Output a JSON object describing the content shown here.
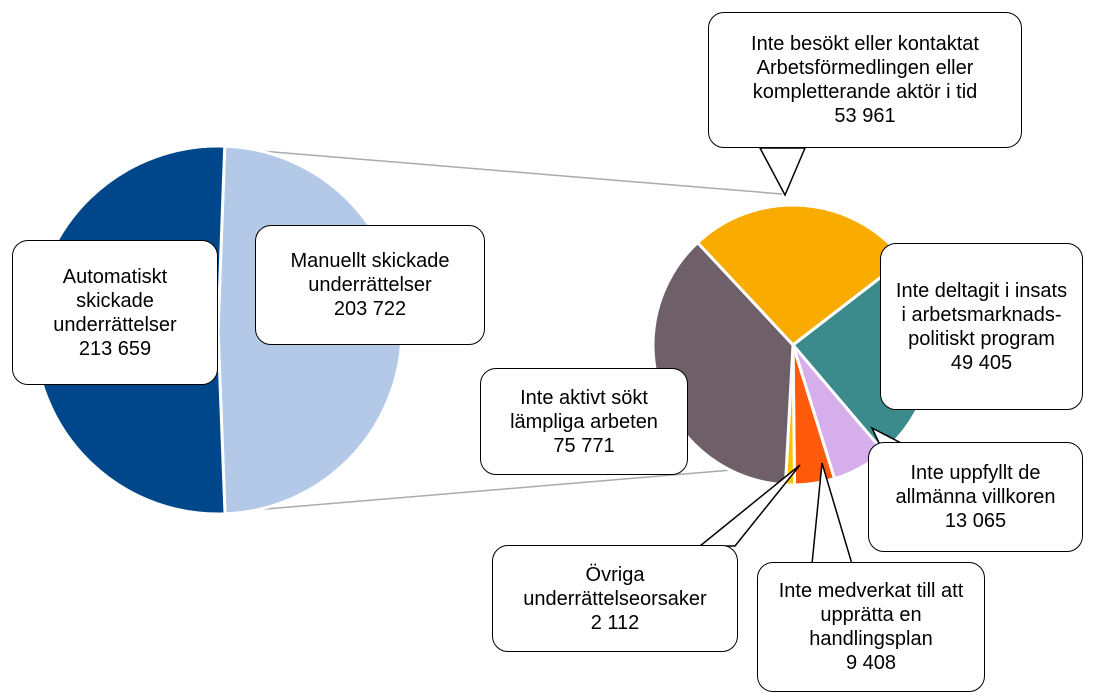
{
  "chart_data": [
    {
      "type": "pie",
      "categories": [
        "Manuellt skickade underrättelser",
        "Automatiskt skickade underrättelser"
      ],
      "values": [
        203722,
        213659
      ],
      "value_labels": [
        "203 722",
        "213 659"
      ],
      "colors": [
        "#b3c9e7",
        "#00468b"
      ]
    },
    {
      "type": "pie",
      "categories": [
        "Inte besökt eller kontaktat Arbetsförmedlingen eller kompletterande aktör i tid",
        "Inte deltagit i insats i arbetsmarknads-politiskt program",
        "Inte uppfyllt de allmänna villkoren",
        "Inte medverkat till att upprätta en handlingsplan",
        "Övriga underrättelseorsaker",
        "Inte aktivt sökt lämpliga arbeten"
      ],
      "values": [
        53961,
        49405,
        13065,
        9408,
        2112,
        75771
      ],
      "value_labels": [
        "53 961",
        "49 405",
        "13 065",
        "9 408",
        "2 112",
        "75 771"
      ],
      "colors": [
        "#f9ab00",
        "#3b8a8c",
        "#d6aeec",
        "#ff5a0a",
        "#f5c400",
        "#6f5f69"
      ]
    }
  ]
}
